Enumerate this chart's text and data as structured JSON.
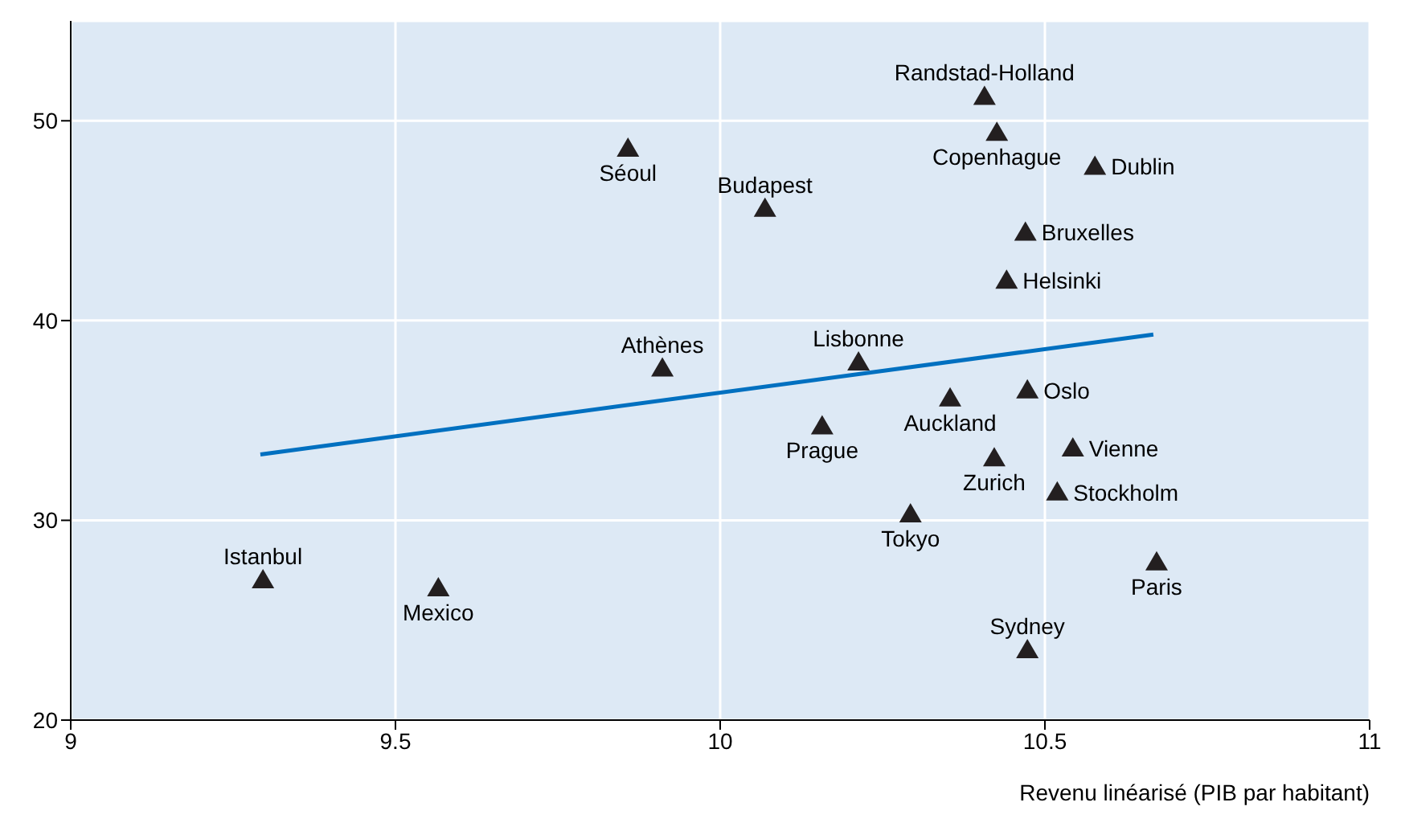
{
  "chart_data": {
    "type": "scatter",
    "xlabel": "Revenu linéarisé (PIB par habitant)",
    "xlim": [
      9,
      11
    ],
    "xticks": [
      9,
      9.5,
      10,
      10.5,
      11
    ],
    "ylim": [
      20,
      55
    ],
    "yticks": [
      20,
      30,
      40,
      50
    ],
    "grid": true,
    "series": [
      {
        "marker": "triangle",
        "color": "#231f20",
        "x": [
          10.407,
          10.426,
          10.577,
          9.858,
          10.069,
          10.47,
          10.441,
          9.911,
          10.213,
          10.473,
          10.354,
          10.157,
          10.543,
          10.422,
          10.519,
          10.293,
          9.296,
          9.566,
          10.672,
          10.473
        ],
        "values": [
          51.2,
          49.4,
          47.7,
          48.6,
          45.6,
          44.4,
          42.0,
          37.6,
          37.9,
          36.5,
          36.1,
          34.7,
          33.6,
          33.1,
          31.4,
          30.3,
          27.0,
          26.6,
          27.9,
          23.5
        ]
      },
      {
        "type": "line",
        "color": "#0070c0",
        "x": [
          9.292,
          10.667
        ],
        "values": [
          33.3,
          39.3
        ]
      }
    ],
    "annotations": [
      {
        "text": "Randstad-Holland",
        "x": 10.407,
        "y": 51.2
      },
      {
        "text": "Copenhague",
        "x": 10.426,
        "y": 49.4
      },
      {
        "text": "Dublin",
        "x": 10.577,
        "y": 47.7
      },
      {
        "text": "Séoul",
        "x": 9.858,
        "y": 48.6
      },
      {
        "text": "Budapest",
        "x": 10.069,
        "y": 45.6
      },
      {
        "text": "Bruxelles",
        "x": 10.47,
        "y": 44.4
      },
      {
        "text": "Helsinki",
        "x": 10.441,
        "y": 42.0
      },
      {
        "text": "Athènes",
        "x": 9.911,
        "y": 37.6
      },
      {
        "text": "Lisbonne",
        "x": 10.213,
        "y": 37.9
      },
      {
        "text": "Oslo",
        "x": 10.473,
        "y": 36.5
      },
      {
        "text": "Auckland",
        "x": 10.354,
        "y": 36.1
      },
      {
        "text": "Prague",
        "x": 10.157,
        "y": 34.7
      },
      {
        "text": "Vienne",
        "x": 10.543,
        "y": 33.6
      },
      {
        "text": "Zurich",
        "x": 10.422,
        "y": 33.1
      },
      {
        "text": "Stockholm",
        "x": 10.519,
        "y": 31.4
      },
      {
        "text": "Tokyo",
        "x": 10.293,
        "y": 30.3
      },
      {
        "text": "Istanbul",
        "x": 9.296,
        "y": 27.0
      },
      {
        "text": "Mexico",
        "x": 9.566,
        "y": 26.6
      },
      {
        "text": "Paris",
        "x": 10.672,
        "y": 27.9
      },
      {
        "text": "Sydney",
        "x": 10.473,
        "y": 23.5
      }
    ]
  }
}
